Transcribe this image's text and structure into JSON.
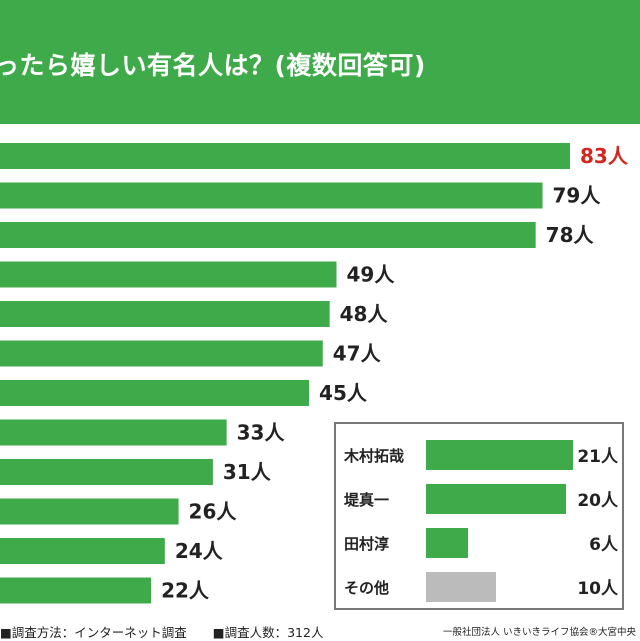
{
  "header": {
    "title": "ったら嬉しい有名人は？(複数回答可)"
  },
  "colors": {
    "header_bg": "#3faa49",
    "bar": "#3faa49",
    "highlight_text": "#d4261e",
    "other_bar": "#bbbbbb"
  },
  "chart_data": [
    {
      "type": "bar",
      "orientation": "horizontal",
      "values": [
        83,
        79,
        78,
        49,
        48,
        47,
        45,
        33,
        31,
        26,
        24,
        22
      ],
      "value_labels": [
        "83人",
        "79人",
        "78人",
        "49人",
        "48人",
        "47人",
        "45人",
        "33人",
        "31人",
        "26人",
        "24人",
        "22人"
      ],
      "highlight_index": 0
    },
    {
      "type": "bar",
      "orientation": "horizontal",
      "categories": [
        "木村拓哉",
        "堤真一",
        "田村淳",
        "その他"
      ],
      "values": [
        21,
        20,
        6,
        10
      ],
      "value_labels": [
        "21人",
        "20人",
        "6人",
        "10人"
      ]
    }
  ],
  "footer": {
    "method": "■調査方法：インターネット調査",
    "respondents": "■調査人数：312人",
    "source": "一般社団法人 いきいきライフ協会®大宮中央"
  }
}
